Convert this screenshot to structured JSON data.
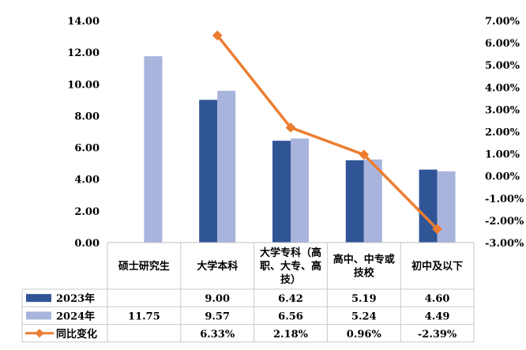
{
  "chart_data": {
    "type": "bar",
    "categories": [
      [
        "硕士研究生"
      ],
      [
        "大学本科"
      ],
      [
        "大学专科（高",
        "职、大专、高",
        "技）"
      ],
      [
        "高中、中专或",
        "技校"
      ],
      [
        "初中及以下"
      ]
    ],
    "series": [
      {
        "name": "2023年",
        "type": "bar",
        "axis": "left",
        "color": "#2f5597",
        "values": [
          null,
          9.0,
          6.42,
          5.19,
          4.6
        ],
        "labels": [
          "",
          "9.00",
          "6.42",
          "5.19",
          "4.60"
        ]
      },
      {
        "name": "2024年",
        "type": "bar",
        "axis": "left",
        "color": "#a9b4dd",
        "values": [
          11.75,
          9.57,
          6.56,
          5.24,
          4.49
        ],
        "labels": [
          "11.75",
          "9.57",
          "6.56",
          "5.24",
          "4.49"
        ]
      },
      {
        "name": "同比变化",
        "type": "line",
        "axis": "right",
        "color": "#ed7d31",
        "values": [
          null,
          6.33,
          2.18,
          0.96,
          -2.39
        ],
        "labels": [
          "",
          "6.33%",
          "2.18%",
          "0.96%",
          "-2.39%"
        ]
      }
    ],
    "y_left": {
      "min": 0,
      "max": 14,
      "step": 2,
      "ticks": [
        "0.00",
        "2.00",
        "4.00",
        "6.00",
        "8.00",
        "10.00",
        "12.00",
        "14.00"
      ]
    },
    "y_right": {
      "min": -3,
      "max": 7,
      "step": 1,
      "ticks": [
        "-3.00%",
        "-2.00%",
        "-1.00%",
        "0.00%",
        "1.00%",
        "2.00%",
        "3.00%",
        "4.00%",
        "5.00%",
        "6.00%",
        "7.00%"
      ]
    },
    "grid": false,
    "legend": "data-table"
  }
}
